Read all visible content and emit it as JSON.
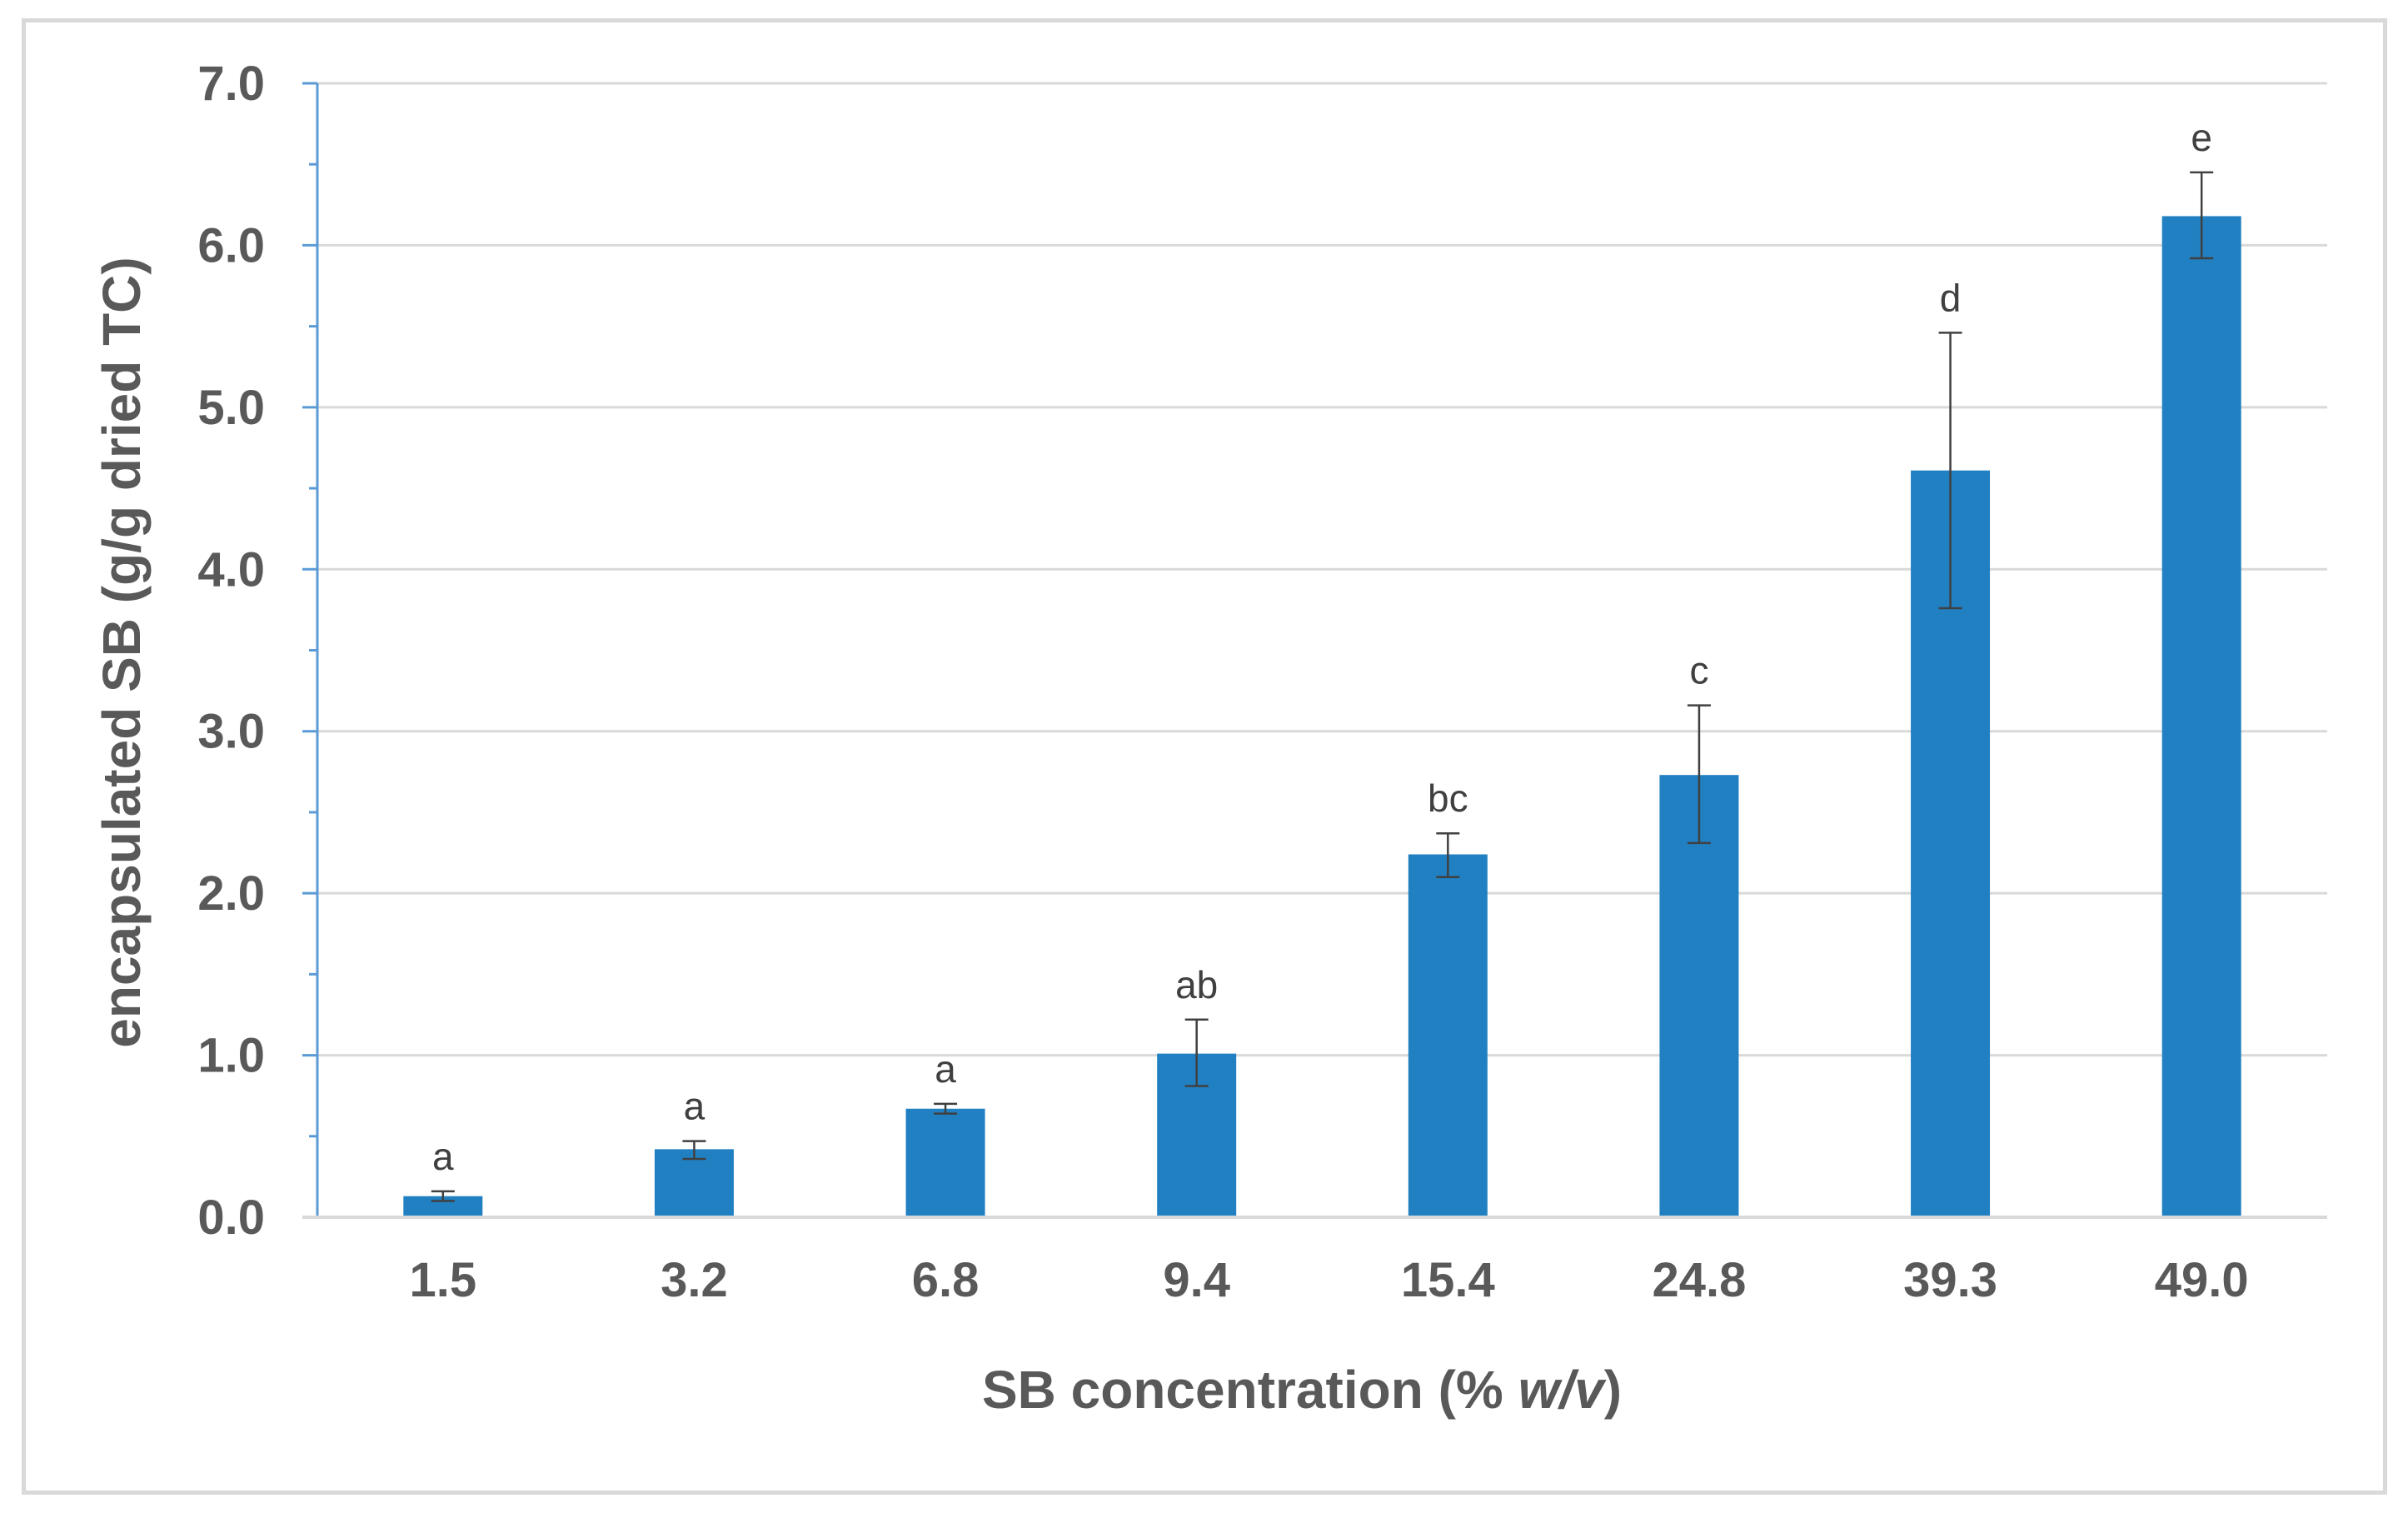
{
  "chart_data": {
    "type": "bar",
    "categories": [
      "1.5",
      "3.2",
      "6.8",
      "9.4",
      "15.4",
      "24.8",
      "39.3",
      "49.0"
    ],
    "values": [
      0.13,
      0.42,
      0.67,
      1.01,
      2.24,
      2.73,
      4.61,
      6.18
    ],
    "error_high": [
      0.16,
      0.47,
      0.7,
      1.22,
      2.37,
      3.16,
      5.46,
      6.45
    ],
    "error_low": [
      0.1,
      0.36,
      0.64,
      0.81,
      2.1,
      2.31,
      3.76,
      5.92
    ],
    "data_labels": [
      "a",
      "a",
      "a",
      "ab",
      "bc",
      "c",
      "d",
      "e"
    ],
    "y_ticks": [
      "0.0",
      "1.0",
      "2.0",
      "3.0",
      "4.0",
      "5.0",
      "6.0",
      "7.0"
    ],
    "ylim": [
      0,
      7
    ],
    "xlabel": "SB concentration (% w/v)",
    "xlabel_plain": "SB concentration (% ",
    "xlabel_italic": "w/v",
    "xlabel_close": ")",
    "ylabel": "encapsulated SB (g/g dried TC)",
    "title": "",
    "grid": true,
    "colors": {
      "bar": "#2180C1",
      "error_bar": "#404040",
      "grid": "#D9D9D9",
      "axis": "#5B9BD5",
      "text": "#595959"
    }
  }
}
